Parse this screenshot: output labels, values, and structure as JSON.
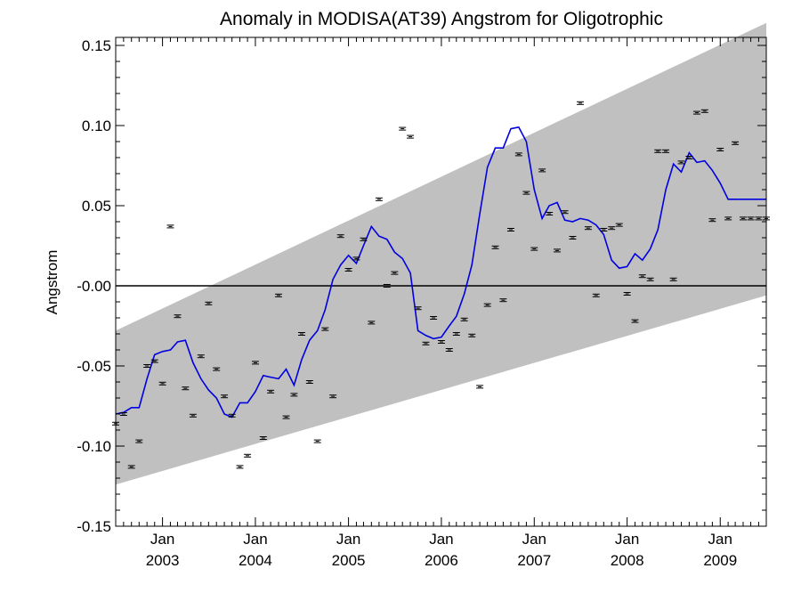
{
  "chart_data": {
    "type": "line",
    "title": "Anomaly in MODISA(AT39) Angstrom for Oligotrophic",
    "ylabel": "Angstrom",
    "xlabel": "",
    "ylim": [
      -0.15,
      0.155
    ],
    "xlim": [
      "2002-07-01",
      "2009-07-01"
    ],
    "y_ticks": [
      {
        "value": 0.15,
        "label": "0.15"
      },
      {
        "value": 0.1,
        "label": "0.10"
      },
      {
        "value": 0.05,
        "label": "0.05"
      },
      {
        "value": 0.0,
        "label": "-0.00"
      },
      {
        "value": -0.05,
        "label": "-0.05"
      },
      {
        "value": -0.1,
        "label": "-0.10"
      },
      {
        "value": -0.15,
        "label": "-0.15"
      }
    ],
    "x_ticks": [
      {
        "value": "2003-01-01",
        "month": "Jan",
        "year": "2003"
      },
      {
        "value": "2004-01-01",
        "month": "Jan",
        "year": "2004"
      },
      {
        "value": "2005-01-01",
        "month": "Jan",
        "year": "2005"
      },
      {
        "value": "2006-01-01",
        "month": "Jan",
        "year": "2006"
      },
      {
        "value": "2007-01-01",
        "month": "Jan",
        "year": "2007"
      },
      {
        "value": "2008-01-01",
        "month": "Jan",
        "year": "2008"
      },
      {
        "value": "2009-01-01",
        "month": "Jan",
        "year": "2009"
      }
    ],
    "band": {
      "x": [
        "2002-07-01",
        "2009-07-01"
      ],
      "upper": [
        -0.028,
        0.164
      ],
      "lower": [
        -0.124,
        -0.006
      ]
    },
    "reference_line_y": 0.0,
    "series": [
      {
        "kind": "points",
        "color": "#000000",
        "x": [
          "2002-07-01",
          "2002-08-01",
          "2002-09-01",
          "2002-10-01",
          "2002-11-01",
          "2002-12-01",
          "2003-01-01",
          "2003-02-01",
          "2003-03-01",
          "2003-04-01",
          "2003-05-01",
          "2003-06-01",
          "2003-07-01",
          "2003-08-01",
          "2003-09-01",
          "2003-10-01",
          "2003-11-01",
          "2003-12-01",
          "2004-01-01",
          "2004-02-01",
          "2004-03-01",
          "2004-04-01",
          "2004-05-01",
          "2004-06-01",
          "2004-07-01",
          "2004-08-01",
          "2004-09-01",
          "2004-10-01",
          "2004-11-01",
          "2004-12-01",
          "2005-01-01",
          "2005-02-01",
          "2005-03-01",
          "2005-04-01",
          "2005-05-01",
          "2005-06-01",
          "2005-07-01",
          "2005-08-01",
          "2005-09-01",
          "2005-10-01",
          "2005-11-01",
          "2005-12-01",
          "2006-01-01",
          "2006-02-01",
          "2006-03-01",
          "2006-04-01",
          "2006-05-01",
          "2006-06-01",
          "2006-07-01",
          "2006-08-01",
          "2006-09-01",
          "2006-10-01",
          "2006-11-01",
          "2006-12-01",
          "2007-01-01",
          "2007-02-01",
          "2007-03-01",
          "2007-04-01",
          "2007-05-01",
          "2007-06-01",
          "2007-07-01",
          "2007-08-01",
          "2007-09-01",
          "2007-10-01",
          "2007-11-01",
          "2007-12-01",
          "2008-01-01",
          "2008-02-01",
          "2008-03-01",
          "2008-04-01",
          "2008-05-01",
          "2008-06-01",
          "2008-07-01",
          "2008-08-01",
          "2008-09-01",
          "2008-10-01",
          "2008-11-01",
          "2008-12-01",
          "2009-01-01",
          "2009-02-01",
          "2009-03-01",
          "2009-04-01",
          "2009-05-01",
          "2009-06-01",
          "2009-07-01"
        ],
        "y": [
          -0.086,
          -0.08,
          -0.113,
          -0.097,
          -0.05,
          -0.047,
          -0.061,
          0.037,
          -0.019,
          -0.064,
          -0.081,
          -0.044,
          -0.011,
          -0.052,
          -0.069,
          -0.081,
          -0.113,
          -0.106,
          -0.048,
          -0.095,
          -0.066,
          -0.006,
          -0.082,
          -0.068,
          -0.03,
          -0.06,
          -0.097,
          -0.027,
          -0.069,
          0.031,
          0.01,
          0.017,
          0.029,
          -0.023,
          0.054,
          0.0,
          0.008,
          0.098,
          0.093,
          -0.014,
          -0.036,
          -0.02,
          -0.035,
          -0.04,
          -0.03,
          -0.021,
          -0.031,
          -0.063,
          -0.012,
          0.024,
          -0.009,
          0.035,
          0.082,
          0.058,
          0.023,
          0.072,
          0.045,
          0.022,
          0.046,
          0.03,
          0.114,
          0.036,
          -0.006,
          0.035,
          0.036,
          0.038,
          -0.005,
          -0.022,
          0.006,
          0.004,
          0.084,
          0.084,
          0.004,
          0.077,
          0.08,
          0.108,
          0.109,
          0.041,
          0.085,
          0.042,
          0.089,
          0.042,
          0.042,
          0.042,
          0.042
        ]
      },
      {
        "kind": "line",
        "color": "#0000e0",
        "x": [
          "2002-07-01",
          "2002-08-01",
          "2002-09-01",
          "2002-10-01",
          "2002-11-01",
          "2002-12-01",
          "2003-01-01",
          "2003-02-01",
          "2003-03-01",
          "2003-04-01",
          "2003-05-01",
          "2003-06-01",
          "2003-07-01",
          "2003-08-01",
          "2003-09-01",
          "2003-10-01",
          "2003-11-01",
          "2003-12-01",
          "2004-01-01",
          "2004-02-01",
          "2004-03-01",
          "2004-04-01",
          "2004-05-01",
          "2004-06-01",
          "2004-07-01",
          "2004-08-01",
          "2004-09-01",
          "2004-10-01",
          "2004-11-01",
          "2004-12-01",
          "2005-01-01",
          "2005-02-01",
          "2005-03-01",
          "2005-04-01",
          "2005-05-01",
          "2005-06-01",
          "2005-07-01",
          "2005-08-01",
          "2005-09-01",
          "2005-10-01",
          "2005-11-01",
          "2005-12-01",
          "2006-01-01",
          "2006-02-01",
          "2006-03-01",
          "2006-04-01",
          "2006-05-01",
          "2006-06-01",
          "2006-07-01",
          "2006-08-01",
          "2006-09-01",
          "2006-10-01",
          "2006-11-01",
          "2006-12-01",
          "2007-01-01",
          "2007-02-01",
          "2007-03-01",
          "2007-04-01",
          "2007-05-01",
          "2007-06-01",
          "2007-07-01",
          "2007-08-01",
          "2007-09-01",
          "2007-10-01",
          "2007-11-01",
          "2007-12-01",
          "2008-01-01",
          "2008-02-01",
          "2008-03-01",
          "2008-04-01",
          "2008-05-01",
          "2008-06-01",
          "2008-07-01",
          "2008-08-01",
          "2008-09-01",
          "2008-10-01",
          "2008-11-01",
          "2008-12-01",
          "2009-01-01",
          "2009-02-01",
          "2009-03-01",
          "2009-04-01",
          "2009-05-01",
          "2009-06-01",
          "2009-07-01"
        ],
        "y": [
          -0.08,
          -0.079,
          -0.076,
          -0.076,
          -0.058,
          -0.043,
          -0.041,
          -0.04,
          -0.035,
          -0.034,
          -0.048,
          -0.058,
          -0.065,
          -0.07,
          -0.08,
          -0.082,
          -0.073,
          -0.073,
          -0.066,
          -0.056,
          -0.057,
          -0.058,
          -0.052,
          -0.062,
          -0.046,
          -0.034,
          -0.028,
          -0.015,
          0.004,
          0.013,
          0.019,
          0.014,
          0.025,
          0.037,
          0.031,
          0.029,
          0.021,
          0.017,
          0.008,
          -0.028,
          -0.031,
          -0.033,
          -0.032,
          -0.025,
          -0.019,
          -0.005,
          0.013,
          0.045,
          0.074,
          0.086,
          0.086,
          0.098,
          0.099,
          0.09,
          0.06,
          0.042,
          0.05,
          0.052,
          0.041,
          0.04,
          0.042,
          0.041,
          0.038,
          0.032,
          0.016,
          0.011,
          0.012,
          0.02,
          0.016,
          0.023,
          0.035,
          0.06,
          0.076,
          0.071,
          0.083,
          0.077,
          0.078,
          0.072,
          0.064,
          0.054,
          0.054,
          0.054,
          0.054,
          0.054,
          0.054
        ]
      }
    ]
  }
}
